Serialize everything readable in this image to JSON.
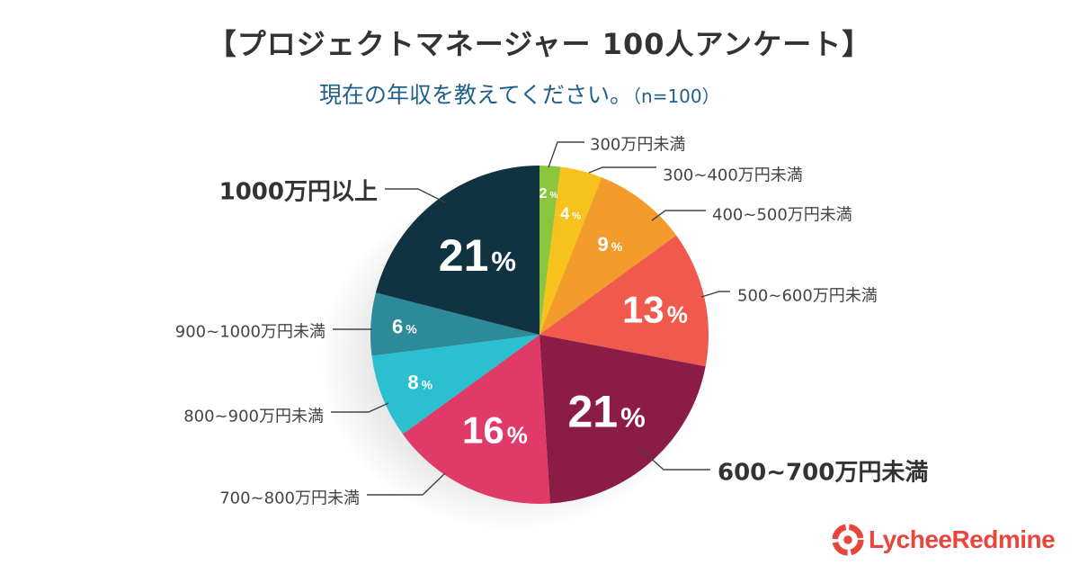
{
  "title": "【プロジェクトマネージャー 100人アンケート】",
  "subtitle": "現在の年収を教えてください。",
  "sample_size": "（n=100）",
  "logo_text": "LycheeRedmine",
  "chart_data": {
    "type": "pie",
    "title": "【プロジェクトマネージャー 100人アンケート】",
    "subtitle": "現在の年収を教えてください。（n=100）",
    "unit": "%",
    "slices": [
      {
        "label": "300万円未満",
        "value": 2,
        "color": "#8cc63f"
      },
      {
        "label": "300~400万円未満",
        "value": 4,
        "color": "#f7c21b"
      },
      {
        "label": "400~500万円未満",
        "value": 9,
        "color": "#f39c2b"
      },
      {
        "label": "500~600万円未満",
        "value": 13,
        "color": "#ef5a4c"
      },
      {
        "label": "600~700万円未満",
        "value": 21,
        "color": "#8b1c46"
      },
      {
        "label": "700~800万円未満",
        "value": 16,
        "color": "#e03a68"
      },
      {
        "label": "800~900万円未満",
        "value": 8,
        "color": "#2bbfcf"
      },
      {
        "label": "900~1000万円未満",
        "value": 6,
        "color": "#2d8a9b"
      },
      {
        "label": "1000万円以上",
        "value": 21,
        "color": "#0f3341"
      }
    ]
  }
}
